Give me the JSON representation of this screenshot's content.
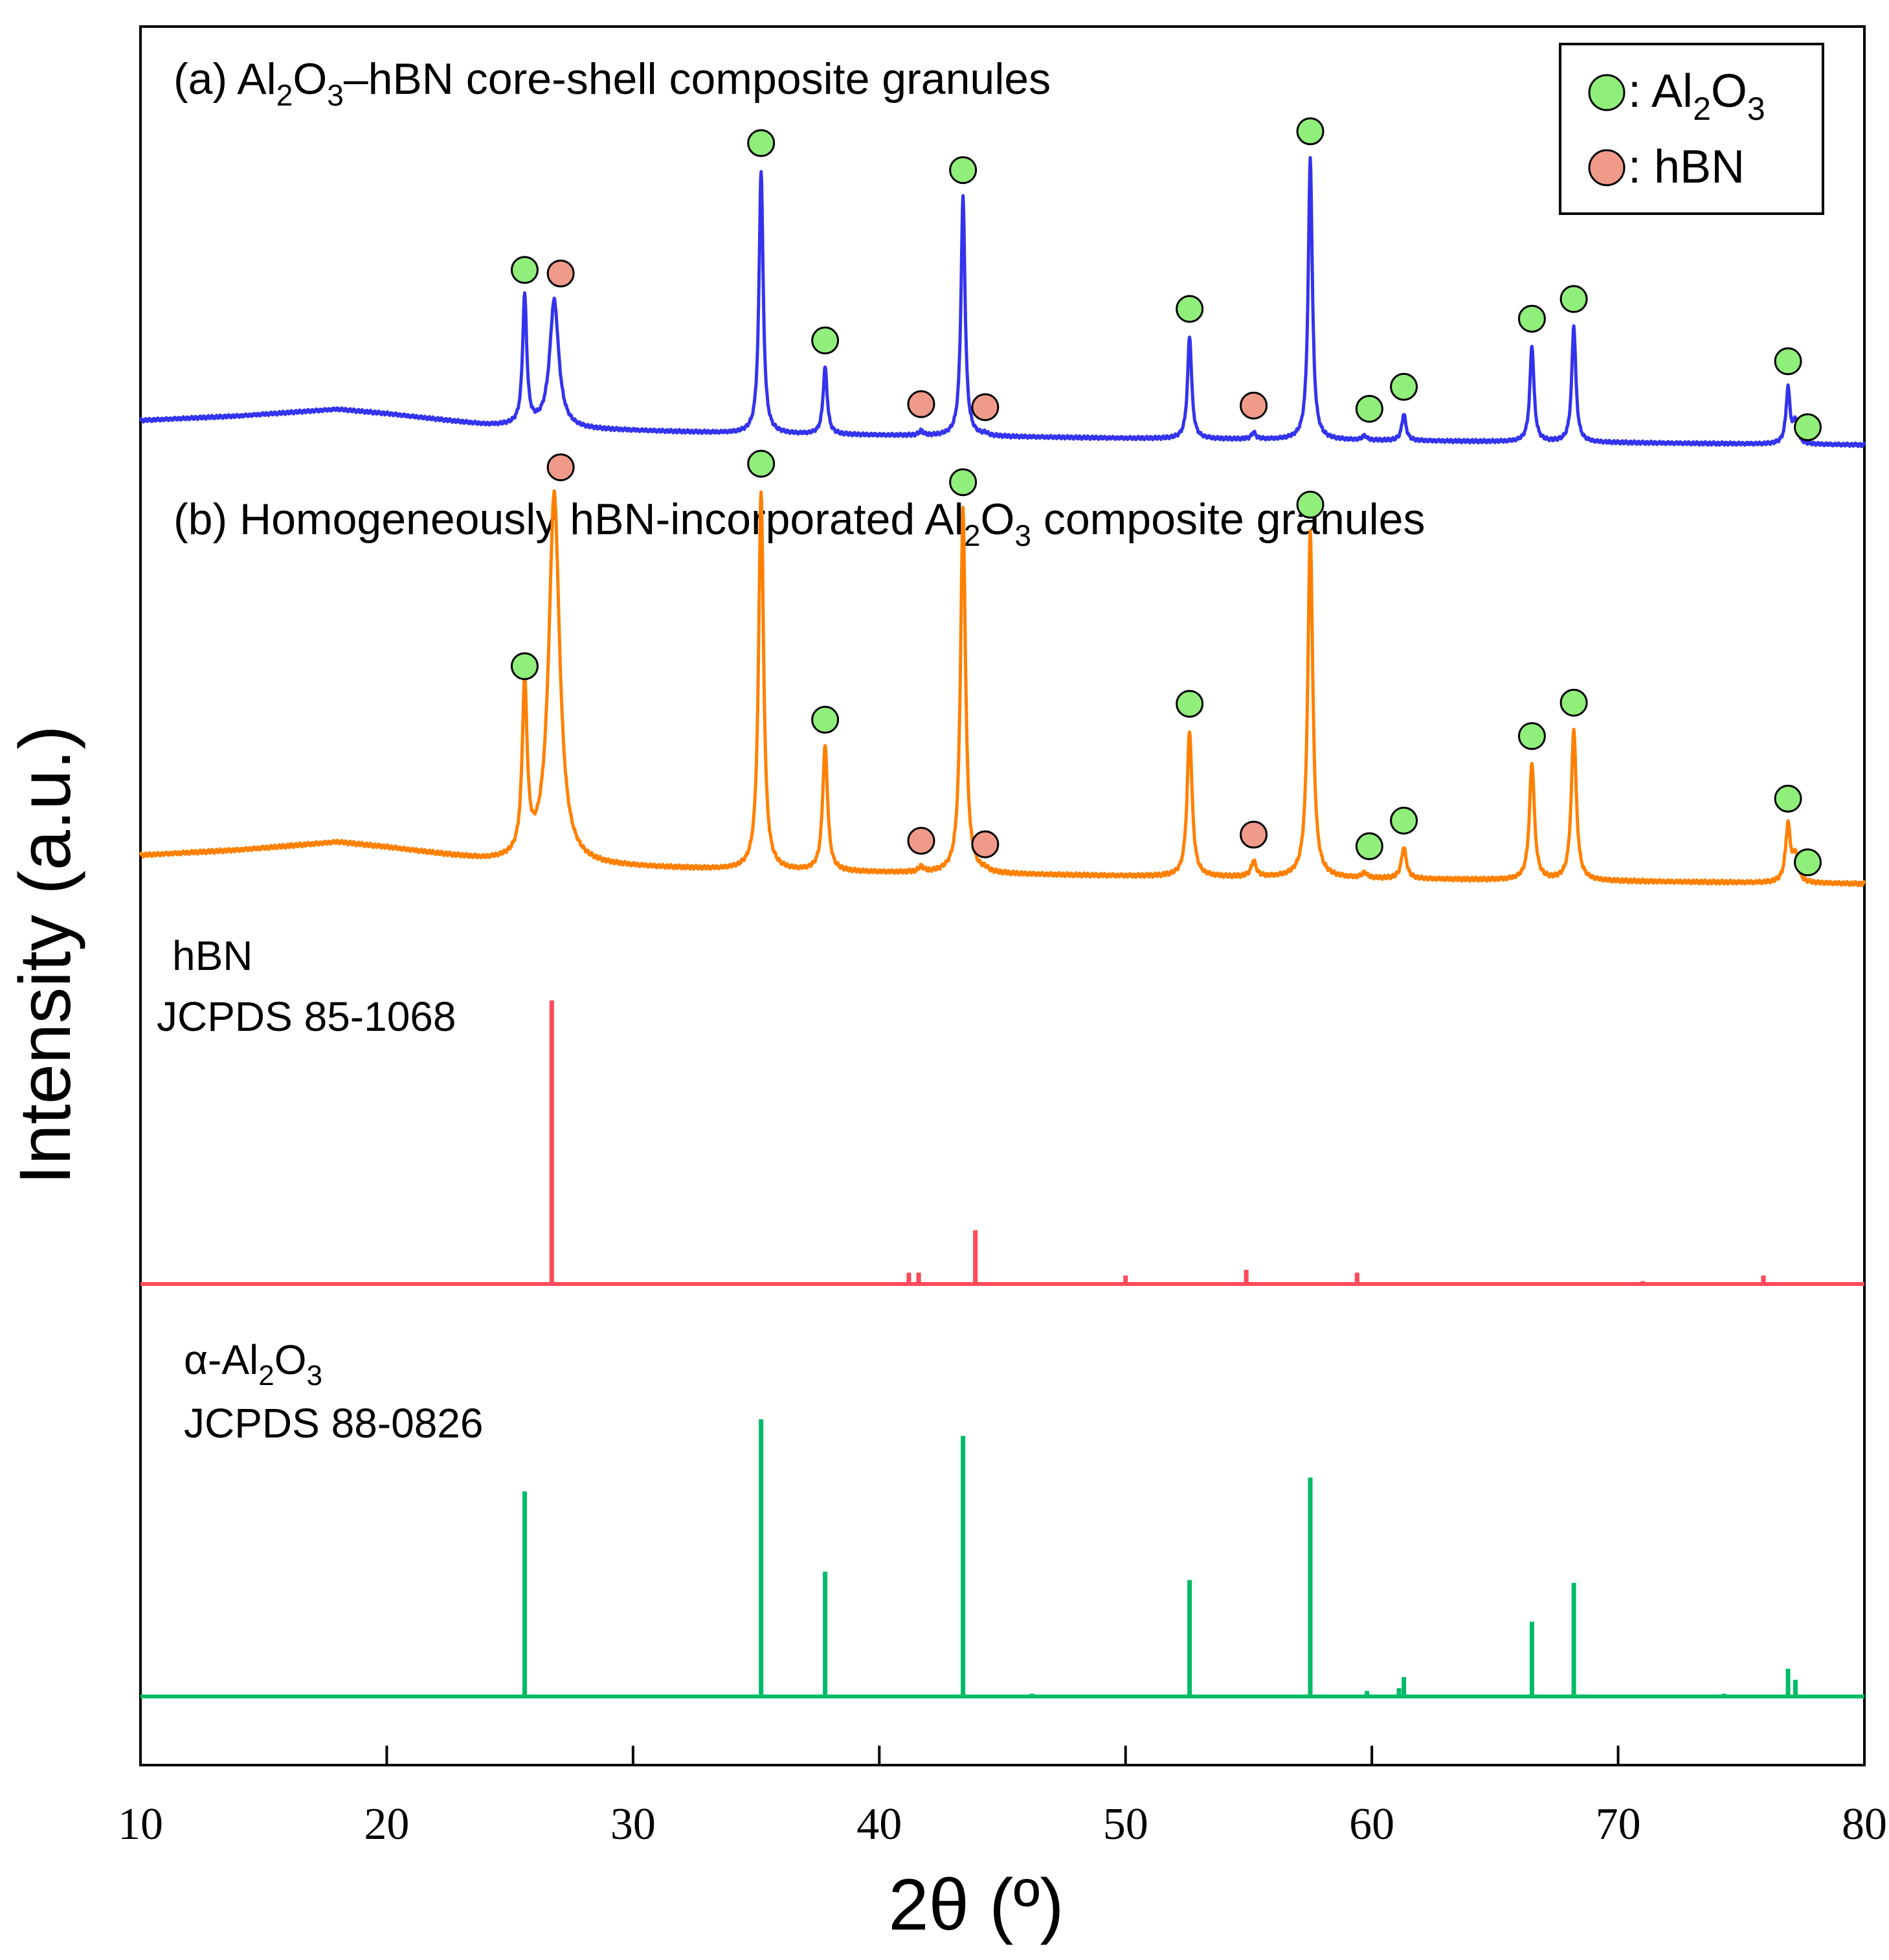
{
  "chart_data": {
    "type": "line",
    "title": "",
    "xlabel": "2θ (º)",
    "ylabel": "Intensity (a.u.)",
    "xlim": [
      10,
      80
    ],
    "xticks": [
      10,
      20,
      30,
      40,
      50,
      60,
      70,
      80
    ],
    "yticks": [],
    "grid": false,
    "legend": {
      "position": "top-right",
      "entries": [
        {
          "marker": "green-circle",
          "prefix": ": Al",
          "sub1": "2",
          "mid": "O",
          "sub2": "3",
          "color": "#90ee7a"
        },
        {
          "marker": "salmon-circle",
          "label": ": hBN",
          "color": "#f09a8a"
        }
      ]
    },
    "panels": [
      {
        "id": "a",
        "label": {
          "prefix": "(a) Al",
          "sub1": "2",
          "mid": "O",
          "sub2": "3",
          "suffix": "–hBN core-shell composite granules"
        },
        "color": "#3333ee",
        "series_type": "line",
        "baseline": {
          "x": [
            10,
            14,
            18,
            20,
            24,
            28,
            35,
            50,
            60,
            70,
            80
          ],
          "y": [
            0.06,
            0.08,
            0.11,
            0.09,
            0.04,
            0.02,
            0.0,
            -0.02,
            -0.03,
            -0.04,
            -0.05
          ]
        },
        "peaks": [
          {
            "x": 25.6,
            "h": 0.58,
            "phase": "Al2O3"
          },
          {
            "x": 26.8,
            "h": 0.57,
            "phase": "hBN"
          },
          {
            "x": 35.2,
            "h": 1.18,
            "phase": "Al2O3"
          },
          {
            "x": 37.8,
            "h": 0.3,
            "phase": "Al2O3"
          },
          {
            "x": 41.7,
            "h": 0.02,
            "phase": "hBN"
          },
          {
            "x": 43.4,
            "h": 1.07,
            "phase": "Al2O3"
          },
          {
            "x": 44.3,
            "h": 0.01,
            "phase": "hBN"
          },
          {
            "x": 52.6,
            "h": 0.46,
            "phase": "Al2O3"
          },
          {
            "x": 55.2,
            "h": 0.03,
            "phase": "hBN"
          },
          {
            "x": 57.5,
            "h": 1.26,
            "phase": "Al2O3"
          },
          {
            "x": 59.7,
            "h": 0.02,
            "phase": "Al2O3"
          },
          {
            "x": 61.3,
            "h": 0.12,
            "phase": "Al2O3"
          },
          {
            "x": 66.5,
            "h": 0.43,
            "phase": "Al2O3"
          },
          {
            "x": 68.2,
            "h": 0.52,
            "phase": "Al2O3"
          },
          {
            "x": 76.9,
            "h": 0.25,
            "phase": "Al2O3"
          },
          {
            "x": 77.2,
            "h": 0.1,
            "phase": "Al2O3"
          }
        ]
      },
      {
        "id": "b",
        "label": {
          "prefix": "(b) Homogeneously hBN-incorporated Al",
          "sub1": "2",
          "mid": "O",
          "sub2": "3",
          "suffix": " composite granules"
        },
        "color": "#ff8000",
        "series_type": "line",
        "baseline": {
          "x": [
            10,
            14,
            18,
            20,
            24,
            28,
            35,
            50,
            60,
            70,
            80
          ],
          "y": [
            0.06,
            0.08,
            0.11,
            0.09,
            0.04,
            0.02,
            0.0,
            -0.02,
            -0.03,
            -0.04,
            -0.05
          ]
        },
        "peaks": [
          {
            "x": 25.6,
            "h": 0.65,
            "phase": "Al2O3"
          },
          {
            "x": 26.8,
            "h": 1.42,
            "phase": "hBN"
          },
          {
            "x": 35.2,
            "h": 1.46,
            "phase": "Al2O3"
          },
          {
            "x": 37.8,
            "h": 0.48,
            "phase": "Al2O3"
          },
          {
            "x": 41.7,
            "h": 0.02,
            "phase": "hBN"
          },
          {
            "x": 43.4,
            "h": 1.4,
            "phase": "Al2O3"
          },
          {
            "x": 44.3,
            "h": 0.01,
            "phase": "hBN"
          },
          {
            "x": 52.6,
            "h": 0.56,
            "phase": "Al2O3"
          },
          {
            "x": 55.2,
            "h": 0.06,
            "phase": "hBN"
          },
          {
            "x": 57.5,
            "h": 1.33,
            "phase": "Al2O3"
          },
          {
            "x": 59.7,
            "h": 0.02,
            "phase": "Al2O3"
          },
          {
            "x": 61.3,
            "h": 0.12,
            "phase": "Al2O3"
          },
          {
            "x": 66.5,
            "h": 0.45,
            "phase": "Al2O3"
          },
          {
            "x": 68.2,
            "h": 0.58,
            "phase": "Al2O3"
          },
          {
            "x": 76.9,
            "h": 0.22,
            "phase": "Al2O3"
          },
          {
            "x": 77.2,
            "h": 0.1,
            "phase": "Al2O3"
          }
        ]
      },
      {
        "id": "hbn-ref",
        "label_lines": [
          "hBN",
          "JCPDS 85-1068"
        ],
        "color": "#ff4a5a",
        "series_type": "stick",
        "sticks": [
          {
            "x": 26.7,
            "h": 1.0
          },
          {
            "x": 41.2,
            "h": 0.04
          },
          {
            "x": 41.6,
            "h": 0.04
          },
          {
            "x": 43.9,
            "h": 0.19
          },
          {
            "x": 50.0,
            "h": 0.03
          },
          {
            "x": 54.9,
            "h": 0.05
          },
          {
            "x": 59.4,
            "h": 0.04
          },
          {
            "x": 71.0,
            "h": 0.01
          },
          {
            "x": 75.9,
            "h": 0.03
          }
        ]
      },
      {
        "id": "al2o3-ref",
        "label": {
          "prefix": "α-Al",
          "sub1": "2",
          "mid": "O",
          "sub2": "3",
          "suffix": ""
        },
        "label_line2": "JCPDS 88-0826",
        "color": "#00bb66",
        "series_type": "stick",
        "sticks": [
          {
            "x": 25.6,
            "h": 0.74
          },
          {
            "x": 35.2,
            "h": 1.0
          },
          {
            "x": 37.8,
            "h": 0.45
          },
          {
            "x": 43.4,
            "h": 0.94
          },
          {
            "x": 46.2,
            "h": 0.01
          },
          {
            "x": 52.6,
            "h": 0.42
          },
          {
            "x": 57.5,
            "h": 0.79
          },
          {
            "x": 59.8,
            "h": 0.02
          },
          {
            "x": 61.1,
            "h": 0.03
          },
          {
            "x": 61.3,
            "h": 0.07
          },
          {
            "x": 66.5,
            "h": 0.27
          },
          {
            "x": 68.2,
            "h": 0.41
          },
          {
            "x": 74.3,
            "h": 0.01
          },
          {
            "x": 76.9,
            "h": 0.1
          },
          {
            "x": 77.2,
            "h": 0.06
          }
        ]
      }
    ]
  }
}
